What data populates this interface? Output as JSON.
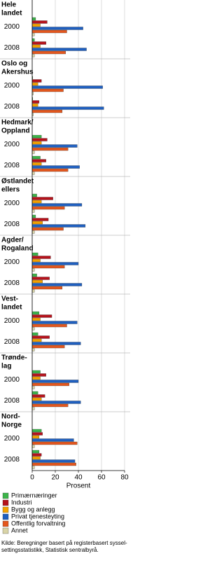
{
  "chart_data": {
    "type": "bar",
    "orientation": "horizontal",
    "groups": [
      [
        "Hele",
        "landet"
      ],
      [
        "Oslo og",
        "Akershus"
      ],
      [
        "Hedmark/",
        "Oppland"
      ],
      [
        "Østlandet",
        "ellers"
      ],
      [
        "Agder/",
        "Rogaland"
      ],
      [
        "Vest-",
        "landet"
      ],
      [
        "Trønde-",
        "lag"
      ],
      [
        "Nord-",
        "Norge"
      ]
    ],
    "categories": [
      "2000",
      "2008",
      "2000",
      "2008",
      "2000",
      "2008",
      "2000",
      "2008",
      "2000",
      "2008",
      "2000",
      "2008",
      "2000",
      "2008",
      "2000",
      "2008"
    ],
    "series": [
      {
        "name": "Primærnæringer",
        "color": "#3cb44a",
        "values": [
          3,
          2,
          0.5,
          0.5,
          8,
          7,
          4,
          3,
          5,
          4,
          6,
          5,
          7,
          5,
          8,
          6
        ]
      },
      {
        "name": "Industri",
        "color": "#b5121b",
        "values": [
          13,
          12,
          8,
          6,
          13,
          12,
          18,
          14,
          16,
          15,
          17,
          15,
          12,
          11,
          9,
          8
        ]
      },
      {
        "name": "Bygg og anlegg",
        "color": "#f5a200",
        "values": [
          7,
          7,
          5,
          5,
          8,
          8,
          8,
          9,
          7,
          9,
          7,
          8,
          7,
          8,
          6,
          7
        ]
      },
      {
        "name": "Privat tjenesteyting",
        "color": "#1f5fbf",
        "values": [
          44,
          47,
          61,
          62,
          39,
          41,
          43,
          46,
          40,
          43,
          39,
          42,
          40,
          42,
          36,
          37
        ]
      },
      {
        "name": "Offentlig forvaltning",
        "color": "#e4571e",
        "values": [
          30,
          29,
          27,
          26,
          31,
          31,
          28,
          27,
          28,
          26,
          30,
          28,
          32,
          31,
          39,
          38
        ]
      },
      {
        "name": "Annet",
        "color": "#d9d4a7",
        "values": [
          2,
          2,
          1,
          1,
          2,
          2,
          2,
          2,
          2,
          2,
          2,
          2,
          2,
          2,
          2,
          2
        ]
      }
    ],
    "xlabel": "Prosent",
    "xlim": [
      0,
      80
    ],
    "xticks": [
      0,
      20,
      40,
      60,
      80
    ],
    "grid": true,
    "source": [
      "Kilde: Beregninger basert på registerbasert syssel-",
      "settingsstatistikk, Statistisk sentralbyrå."
    ]
  }
}
